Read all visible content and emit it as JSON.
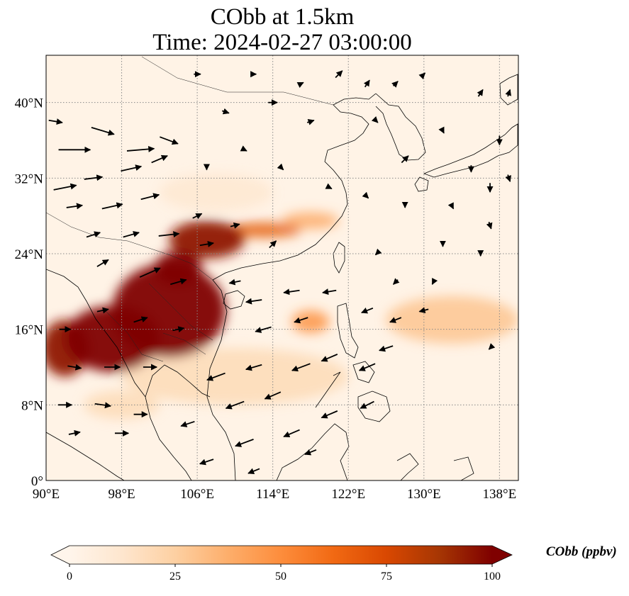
{
  "title": {
    "line1": "CObb at 1.5km",
    "line2": "Time: 2024-02-27 03:00:00"
  },
  "chart_data": {
    "type": "heatmap",
    "projection": "PlateCarree",
    "xlim": [
      90,
      140
    ],
    "ylim": [
      0,
      45
    ],
    "grid": true,
    "x_ticks": [
      {
        "value": 90,
        "label": "90°E"
      },
      {
        "value": 98,
        "label": "98°E"
      },
      {
        "value": 106,
        "label": "106°E"
      },
      {
        "value": 114,
        "label": "114°E"
      },
      {
        "value": 122,
        "label": "122°E"
      },
      {
        "value": 130,
        "label": "130°E"
      },
      {
        "value": 138,
        "label": "138°E"
      }
    ],
    "y_ticks": [
      {
        "value": 0,
        "label": "0°"
      },
      {
        "value": 8,
        "label": "8°N"
      },
      {
        "value": 16,
        "label": "16°N"
      },
      {
        "value": 24,
        "label": "24°N"
      },
      {
        "value": 32,
        "label": "32°N"
      },
      {
        "value": 40,
        "label": "40°N"
      }
    ],
    "colorbar": {
      "label": "CObb (ppbv)",
      "min": 0,
      "max": 100,
      "extend": "both",
      "ticks": [
        0,
        25,
        50,
        75,
        100
      ],
      "colormap": [
        "#fff5eb",
        "#fee6ce",
        "#fdd0a2",
        "#fdae6b",
        "#fd8d3c",
        "#f16913",
        "#d94801",
        "#a63603",
        "#7f0000"
      ]
    },
    "plumes": [
      {
        "lon": 103,
        "lat": 18,
        "rx": 6,
        "ry": 5,
        "value": 100
      },
      {
        "lon": 97,
        "lat": 15,
        "rx": 5,
        "ry": 3.5,
        "value": 100
      },
      {
        "lon": 92,
        "lat": 14,
        "rx": 2.5,
        "ry": 3,
        "value": 95
      },
      {
        "lon": 107,
        "lat": 25.5,
        "rx": 4,
        "ry": 2,
        "value": 95
      },
      {
        "lon": 104,
        "lat": 22.5,
        "rx": 2.5,
        "ry": 1.8,
        "value": 100
      },
      {
        "lon": 113,
        "lat": 26.5,
        "rx": 4,
        "ry": 0.8,
        "value": 70
      },
      {
        "lon": 118,
        "lat": 27.5,
        "rx": 3,
        "ry": 0.9,
        "value": 40
      },
      {
        "lon": 118,
        "lat": 16.8,
        "rx": 2,
        "ry": 1.2,
        "value": 50
      },
      {
        "lon": 110,
        "lat": 11,
        "rx": 12,
        "ry": 3,
        "value": 20
      },
      {
        "lon": 133,
        "lat": 17,
        "rx": 7,
        "ry": 2.5,
        "value": 30
      },
      {
        "lon": 108,
        "lat": 30.5,
        "rx": 6,
        "ry": 2,
        "value": 12
      },
      {
        "lon": 98,
        "lat": 8,
        "rx": 4,
        "ry": 1.5,
        "value": 20
      }
    ],
    "wind_vectors": [
      {
        "lon": 91,
        "lat": 38,
        "u": 6,
        "v": -1
      },
      {
        "lon": 93,
        "lat": 35,
        "u": 14,
        "v": 0
      },
      {
        "lon": 96,
        "lat": 37,
        "u": 10,
        "v": -3
      },
      {
        "lon": 100,
        "lat": 35,
        "u": 12,
        "v": 1
      },
      {
        "lon": 103,
        "lat": 36,
        "u": 8,
        "v": -3
      },
      {
        "lon": 92,
        "lat": 31,
        "u": 10,
        "v": 2
      },
      {
        "lon": 95,
        "lat": 32,
        "u": 8,
        "v": 1
      },
      {
        "lon": 99,
        "lat": 33,
        "u": 9,
        "v": 2
      },
      {
        "lon": 102,
        "lat": 34,
        "u": 7,
        "v": 3
      },
      {
        "lon": 93,
        "lat": 29,
        "u": 7,
        "v": 1
      },
      {
        "lon": 97,
        "lat": 29,
        "u": 9,
        "v": 2
      },
      {
        "lon": 101,
        "lat": 30,
        "u": 8,
        "v": 2
      },
      {
        "lon": 95,
        "lat": 26,
        "u": 6,
        "v": 2
      },
      {
        "lon": 99,
        "lat": 26,
        "u": 7,
        "v": 2
      },
      {
        "lon": 103,
        "lat": 26,
        "u": 9,
        "v": 1
      },
      {
        "lon": 107,
        "lat": 25,
        "u": 6,
        "v": 1
      },
      {
        "lon": 96,
        "lat": 23,
        "u": 5,
        "v": 3
      },
      {
        "lon": 101,
        "lat": 22,
        "u": 9,
        "v": 4
      },
      {
        "lon": 104,
        "lat": 21,
        "u": 7,
        "v": 2
      },
      {
        "lon": 106,
        "lat": 28,
        "u": 4,
        "v": 2
      },
      {
        "lon": 110,
        "lat": 27,
        "u": 4,
        "v": 1
      },
      {
        "lon": 114,
        "lat": 25,
        "u": 3,
        "v": 3
      },
      {
        "lon": 96,
        "lat": 18,
        "u": 5,
        "v": 1
      },
      {
        "lon": 100,
        "lat": 17,
        "u": 6,
        "v": 2
      },
      {
        "lon": 104,
        "lat": 16,
        "u": 5,
        "v": 1
      },
      {
        "lon": 92,
        "lat": 16,
        "u": 5,
        "v": 0
      },
      {
        "lon": 93,
        "lat": 12,
        "u": 6,
        "v": -1
      },
      {
        "lon": 97,
        "lat": 12,
        "u": 7,
        "v": 0
      },
      {
        "lon": 101,
        "lat": 12,
        "u": 6,
        "v": 0
      },
      {
        "lon": 92,
        "lat": 8,
        "u": 6,
        "v": 0
      },
      {
        "lon": 96,
        "lat": 8,
        "u": 7,
        "v": -1
      },
      {
        "lon": 100,
        "lat": 7,
        "u": 6,
        "v": 0
      },
      {
        "lon": 93,
        "lat": 5,
        "u": 5,
        "v": 1
      },
      {
        "lon": 98,
        "lat": 5,
        "u": 6,
        "v": 0
      },
      {
        "lon": 105,
        "lat": 6,
        "u": -6,
        "v": -2
      },
      {
        "lon": 110,
        "lat": 8,
        "u": -8,
        "v": -3
      },
      {
        "lon": 114,
        "lat": 9,
        "u": -7,
        "v": -3
      },
      {
        "lon": 108,
        "lat": 11,
        "u": -8,
        "v": -3
      },
      {
        "lon": 112,
        "lat": 12,
        "u": -7,
        "v": -2
      },
      {
        "lon": 117,
        "lat": 12,
        "u": -8,
        "v": -3
      },
      {
        "lon": 120,
        "lat": 13,
        "u": -7,
        "v": -3
      },
      {
        "lon": 124,
        "lat": 12,
        "u": -7,
        "v": -3
      },
      {
        "lon": 126,
        "lat": 14,
        "u": -6,
        "v": -2
      },
      {
        "lon": 111,
        "lat": 4,
        "u": -8,
        "v": -3
      },
      {
        "lon": 116,
        "lat": 5,
        "u": -7,
        "v": -3
      },
      {
        "lon": 120,
        "lat": 7,
        "u": -7,
        "v": -3
      },
      {
        "lon": 124,
        "lat": 8,
        "u": -6,
        "v": -3
      },
      {
        "lon": 107,
        "lat": 2,
        "u": -6,
        "v": -2
      },
      {
        "lon": 112,
        "lat": 1,
        "u": -5,
        "v": -2
      },
      {
        "lon": 118,
        "lat": 3,
        "u": -5,
        "v": -2
      },
      {
        "lon": 113,
        "lat": 16,
        "u": -7,
        "v": -2
      },
      {
        "lon": 117,
        "lat": 17,
        "u": -6,
        "v": -2
      },
      {
        "lon": 112,
        "lat": 19,
        "u": -7,
        "v": -1
      },
      {
        "lon": 116,
        "lat": 20,
        "u": -7,
        "v": -1
      },
      {
        "lon": 120,
        "lat": 20,
        "u": -6,
        "v": -1
      },
      {
        "lon": 124,
        "lat": 18,
        "u": -5,
        "v": -2
      },
      {
        "lon": 127,
        "lat": 17,
        "u": -5,
        "v": -2
      },
      {
        "lon": 130,
        "lat": 18,
        "u": -4,
        "v": -1
      },
      {
        "lon": 110,
        "lat": 21,
        "u": -5,
        "v": -1
      },
      {
        "lon": 127,
        "lat": 21,
        "u": -2,
        "v": -2
      },
      {
        "lon": 131,
        "lat": 21,
        "u": -1,
        "v": -2
      },
      {
        "lon": 125,
        "lat": 24,
        "u": -1,
        "v": -1
      },
      {
        "lon": 107,
        "lat": 33,
        "u": 0,
        "v": -1
      },
      {
        "lon": 111,
        "lat": 35,
        "u": 2,
        "v": -1
      },
      {
        "lon": 115,
        "lat": 33,
        "u": 1,
        "v": -1
      },
      {
        "lon": 109,
        "lat": 39,
        "u": 3,
        "v": -1
      },
      {
        "lon": 114,
        "lat": 40,
        "u": 4,
        "v": 0
      },
      {
        "lon": 118,
        "lat": 38,
        "u": 3,
        "v": 1
      },
      {
        "lon": 106,
        "lat": 43,
        "u": 3,
        "v": 0
      },
      {
        "lon": 112,
        "lat": 43,
        "u": 2,
        "v": 0
      },
      {
        "lon": 117,
        "lat": 42,
        "u": 2,
        "v": 1
      },
      {
        "lon": 121,
        "lat": 43,
        "u": 3,
        "v": 3
      },
      {
        "lon": 124,
        "lat": 42,
        "u": 2,
        "v": 3
      },
      {
        "lon": 127,
        "lat": 42,
        "u": 2,
        "v": 2
      },
      {
        "lon": 130,
        "lat": 43,
        "u": 1,
        "v": 1
      },
      {
        "lon": 125,
        "lat": 38,
        "u": 1,
        "v": -1
      },
      {
        "lon": 128,
        "lat": 34,
        "u": 3,
        "v": 3
      },
      {
        "lon": 132,
        "lat": 37,
        "u": 1,
        "v": -2
      },
      {
        "lon": 135,
        "lat": 33,
        "u": 0,
        "v": -3
      },
      {
        "lon": 137,
        "lat": 31,
        "u": 0,
        "v": -4
      },
      {
        "lon": 138,
        "lat": 36,
        "u": 0,
        "v": -4
      },
      {
        "lon": 139,
        "lat": 32,
        "u": 1,
        "v": -3
      },
      {
        "lon": 136,
        "lat": 41,
        "u": 2,
        "v": 3
      },
      {
        "lon": 139,
        "lat": 41,
        "u": 1,
        "v": 3
      },
      {
        "lon": 133,
        "lat": 29,
        "u": 1,
        "v": -2
      },
      {
        "lon": 137,
        "lat": 27,
        "u": 1,
        "v": -3
      },
      {
        "lon": 120,
        "lat": 31,
        "u": 2,
        "v": -1
      },
      {
        "lon": 124,
        "lat": 30,
        "u": 1,
        "v": -1
      },
      {
        "lon": 128,
        "lat": 29,
        "u": 0,
        "v": -1
      },
      {
        "lon": 132,
        "lat": 25,
        "u": 0,
        "v": -2
      },
      {
        "lon": 136,
        "lat": 24,
        "u": 0,
        "v": -2
      },
      {
        "lon": 137,
        "lat": 14,
        "u": -1,
        "v": -1
      }
    ],
    "map_labels": []
  }
}
